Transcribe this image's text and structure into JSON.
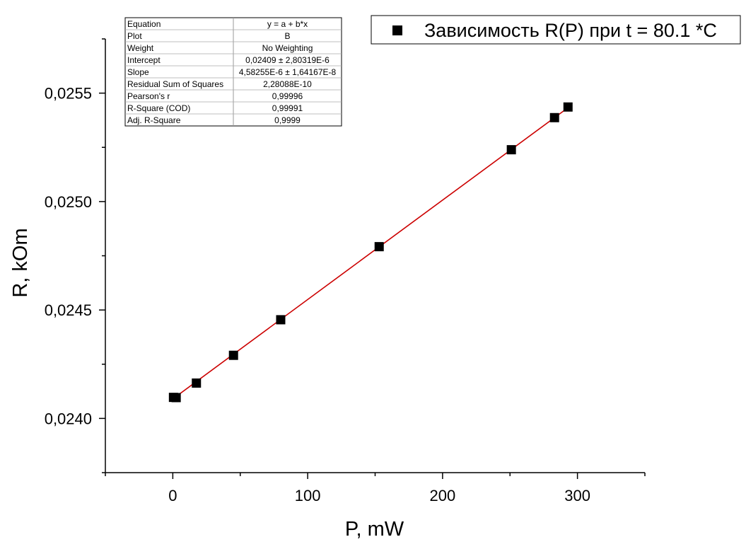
{
  "chart_data": {
    "type": "scatter",
    "title": "",
    "xlabel": "P, mW",
    "ylabel": "R, kOm",
    "xlim": [
      -50,
      350
    ],
    "ylim": [
      0.02375,
      0.02575
    ],
    "x_ticks": [
      0,
      100,
      200,
      300
    ],
    "x_tick_labels": [
      "0",
      "100",
      "200",
      "300"
    ],
    "x_minor_ticks": [
      -50,
      50,
      150,
      250,
      350
    ],
    "y_ticks": [
      0.024,
      0.0245,
      0.025,
      0.0255
    ],
    "y_tick_labels": [
      "0,0240",
      "0,0245",
      "0,0250",
      "0,0255"
    ],
    "y_minor_ticks": [
      0.02375,
      0.02425,
      0.02475,
      0.02525,
      0.02575
    ],
    "grid": false,
    "legend_position": "top-right",
    "series": [
      {
        "name": "Зависимость R(P) при t = 80.1 *C",
        "marker": "square",
        "color": "#000000",
        "x": [
          0.5,
          2.5,
          17.5,
          45,
          80,
          153,
          251,
          283,
          293
        ],
        "y": [
          0.024097,
          0.024096,
          0.024163,
          0.024291,
          0.024455,
          0.024792,
          0.025239,
          0.025387,
          0.025436
        ]
      }
    ],
    "fit_line": {
      "color": "#cc0000",
      "intercept": 0.02409,
      "slope": 4.58255e-06,
      "x_range": [
        0,
        293
      ]
    },
    "fit_table": {
      "rows": [
        [
          "Equation",
          "y = a + b*x"
        ],
        [
          "Plot",
          "B"
        ],
        [
          "Weight",
          "No Weighting"
        ],
        [
          "Intercept",
          "0,02409 ± 2,80319E-6"
        ],
        [
          "Slope",
          "4,58255E-6 ± 1,64167E-8"
        ],
        [
          "Residual Sum of Squares",
          "2,28088E-10"
        ],
        [
          "Pearson's r",
          "0,99996"
        ],
        [
          "R-Square (COD)",
          "0,99991"
        ],
        [
          "Adj. R-Square",
          "0,9999"
        ]
      ]
    }
  }
}
